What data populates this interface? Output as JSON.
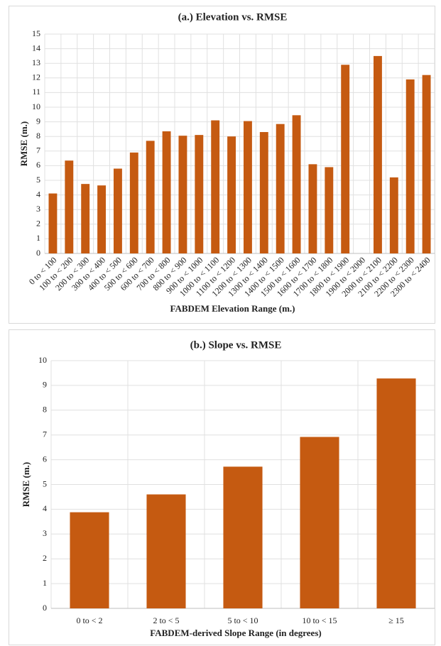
{
  "chart_data": [
    {
      "type": "bar",
      "title": "(a.) Elevation vs. RMSE",
      "x_label": "FABDEM Elevation Range (m.)",
      "y_label": "RMSE (m.)",
      "categories": [
        "0 to < 100",
        "100 to < 200",
        "200 to < 300",
        "300 to < 400",
        "400 to < 500",
        "500 to < 600",
        "600 to < 700",
        "700 to < 800",
        "800 to < 900",
        "900 to < 1000",
        "1000 to < 1100",
        "1100 to < 1200",
        "1200 to < 1300",
        "1300 to < 1400",
        "1400 to < 1500",
        "1500 to < 1600",
        "1600 to < 1700",
        "1700 to < 1800",
        "1800 to < 1900",
        "1900 to < 2000",
        "2000 to < 2100",
        "2100 to < 2200",
        "2200 to < 2300",
        "2300 to < 2400"
      ],
      "values": [
        4.1,
        6.35,
        4.75,
        4.65,
        5.8,
        6.9,
        7.7,
        8.35,
        8.05,
        8.1,
        9.1,
        8.0,
        9.05,
        8.3,
        8.85,
        9.45,
        6.1,
        5.9,
        12.9,
        null,
        13.5,
        5.2,
        11.9,
        12.2
      ],
      "color": "#c55a11",
      "ylim": [
        0,
        15
      ],
      "yticks": [
        0,
        1,
        2,
        3,
        4,
        5,
        6,
        7,
        8,
        9,
        10,
        11,
        12,
        13,
        14,
        15
      ],
      "grid": true
    },
    {
      "type": "bar",
      "title": "(b.) Slope vs. RMSE",
      "x_label": "FABDEM-derived Slope Range (in degrees)",
      "y_label": "RMSE (m.)",
      "categories": [
        "0 to < 2",
        "2 to < 5",
        "5 to < 10",
        "10 to < 15",
        "≥ 15"
      ],
      "values": [
        3.88,
        4.6,
        5.72,
        6.92,
        9.28
      ],
      "color": "#c55a11",
      "ylim": [
        0,
        10
      ],
      "yticks": [
        0,
        1,
        2,
        3,
        4,
        5,
        6,
        7,
        8,
        9,
        10
      ],
      "grid": true
    }
  ]
}
